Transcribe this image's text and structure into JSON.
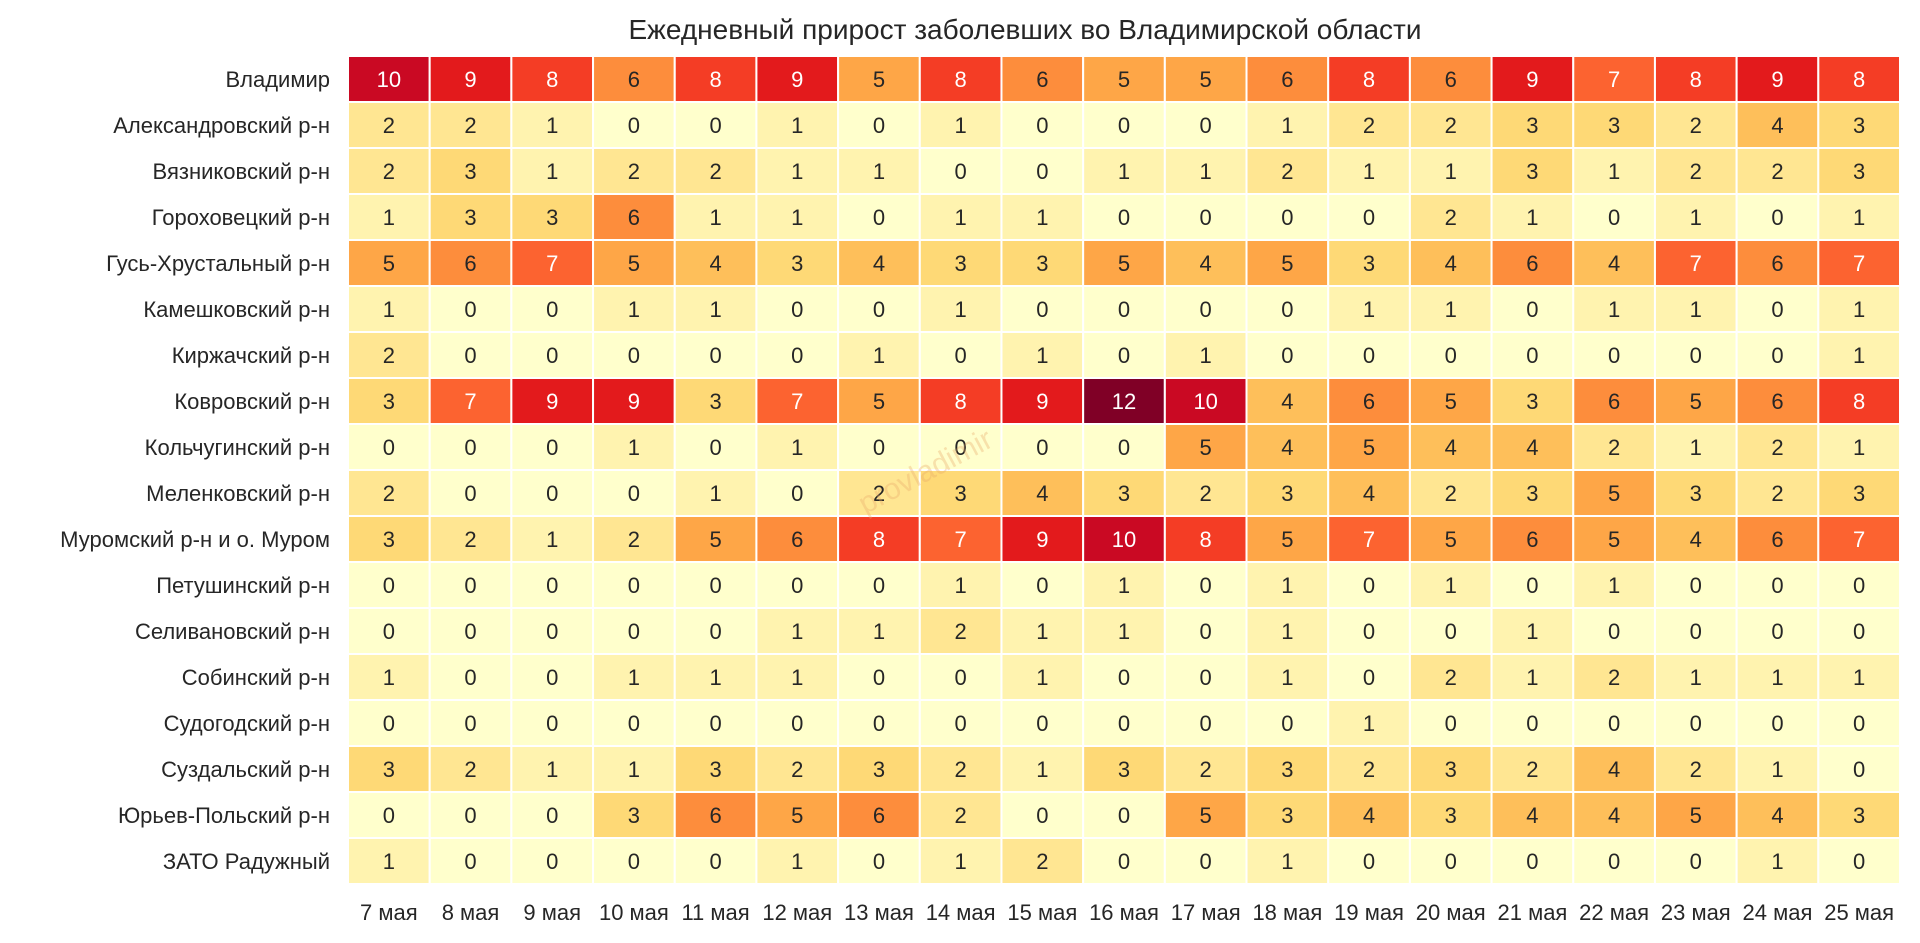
{
  "chart_data": {
    "type": "heatmap",
    "title": "Ежедневный прирост заболевших во Владимирской области",
    "watermark": "provladimir",
    "colormap": "YlOrRd",
    "vmin": 0,
    "vmax": 12,
    "grid": false,
    "columns": [
      "7 мая",
      "8 мая",
      "9 мая",
      "10 мая",
      "11 мая",
      "12 мая",
      "13 мая",
      "14 мая",
      "15 мая",
      "16 мая",
      "17 мая",
      "18 мая",
      "19 мая",
      "20 мая",
      "21 мая",
      "22 мая",
      "23 мая",
      "24 мая",
      "25 мая"
    ],
    "rows": [
      {
        "name": "Владимир",
        "values": [
          10,
          9,
          8,
          6,
          8,
          9,
          5,
          8,
          6,
          5,
          5,
          6,
          8,
          6,
          9,
          7,
          8,
          9,
          8
        ]
      },
      {
        "name": "Александровский р-н",
        "values": [
          2,
          2,
          1,
          0,
          0,
          1,
          0,
          1,
          0,
          0,
          0,
          1,
          2,
          2,
          3,
          3,
          2,
          4,
          3
        ]
      },
      {
        "name": "Вязниковский р-н",
        "values": [
          2,
          3,
          1,
          2,
          2,
          1,
          1,
          0,
          0,
          1,
          1,
          2,
          1,
          1,
          3,
          1,
          2,
          2,
          3
        ]
      },
      {
        "name": "Гороховецкий р-н",
        "values": [
          1,
          3,
          3,
          6,
          1,
          1,
          0,
          1,
          1,
          0,
          0,
          0,
          0,
          2,
          1,
          0,
          1,
          0,
          1
        ]
      },
      {
        "name": "Гусь-Хрустальный р-н",
        "values": [
          5,
          6,
          7,
          5,
          4,
          3,
          4,
          3,
          3,
          5,
          4,
          5,
          3,
          4,
          6,
          4,
          7,
          6,
          7
        ]
      },
      {
        "name": "Камешковский р-н",
        "values": [
          1,
          0,
          0,
          1,
          1,
          0,
          0,
          1,
          0,
          0,
          0,
          0,
          1,
          1,
          0,
          1,
          1,
          0,
          1
        ]
      },
      {
        "name": "Киржачский р-н",
        "values": [
          2,
          0,
          0,
          0,
          0,
          0,
          1,
          0,
          1,
          0,
          1,
          0,
          0,
          0,
          0,
          0,
          0,
          0,
          1
        ]
      },
      {
        "name": "Ковровский р-н",
        "values": [
          3,
          7,
          9,
          9,
          3,
          7,
          5,
          8,
          9,
          12,
          10,
          4,
          6,
          5,
          3,
          6,
          5,
          6,
          8
        ]
      },
      {
        "name": "Кольчугинский р-н",
        "values": [
          0,
          0,
          0,
          1,
          0,
          1,
          0,
          0,
          0,
          0,
          5,
          4,
          5,
          4,
          4,
          2,
          1,
          2,
          1
        ]
      },
      {
        "name": "Меленковский р-н",
        "values": [
          2,
          0,
          0,
          0,
          1,
          0,
          2,
          3,
          4,
          3,
          2,
          3,
          4,
          2,
          3,
          5,
          3,
          2,
          3
        ]
      },
      {
        "name": "Муромский р-н и о. Муром",
        "values": [
          3,
          2,
          1,
          2,
          5,
          6,
          8,
          7,
          9,
          10,
          8,
          5,
          7,
          5,
          6,
          5,
          4,
          6,
          7
        ]
      },
      {
        "name": "Петушинский р-н",
        "values": [
          0,
          0,
          0,
          0,
          0,
          0,
          0,
          1,
          0,
          1,
          0,
          1,
          0,
          1,
          0,
          1,
          0,
          0,
          0
        ]
      },
      {
        "name": "Селивановский р-н",
        "values": [
          0,
          0,
          0,
          0,
          0,
          1,
          1,
          2,
          1,
          1,
          0,
          1,
          0,
          0,
          1,
          0,
          0,
          0,
          0
        ]
      },
      {
        "name": "Собинский р-н",
        "values": [
          1,
          0,
          0,
          1,
          1,
          1,
          0,
          0,
          1,
          0,
          0,
          1,
          0,
          2,
          1,
          2,
          1,
          1,
          1
        ]
      },
      {
        "name": "Судогодский р-н",
        "values": [
          0,
          0,
          0,
          0,
          0,
          0,
          0,
          0,
          0,
          0,
          0,
          0,
          1,
          0,
          0,
          0,
          0,
          0,
          0
        ]
      },
      {
        "name": "Суздальский р-н",
        "values": [
          3,
          2,
          1,
          1,
          3,
          2,
          3,
          2,
          1,
          3,
          2,
          3,
          2,
          3,
          2,
          4,
          2,
          1,
          0
        ]
      },
      {
        "name": "Юрьев-Польский р-н",
        "values": [
          0,
          0,
          0,
          3,
          6,
          5,
          6,
          2,
          0,
          0,
          5,
          3,
          4,
          3,
          4,
          4,
          5,
          4,
          3
        ]
      },
      {
        "name": "ЗАТО Радужный",
        "values": [
          1,
          0,
          0,
          0,
          0,
          1,
          0,
          1,
          2,
          0,
          0,
          1,
          0,
          0,
          0,
          0,
          0,
          1,
          0
        ]
      }
    ]
  }
}
